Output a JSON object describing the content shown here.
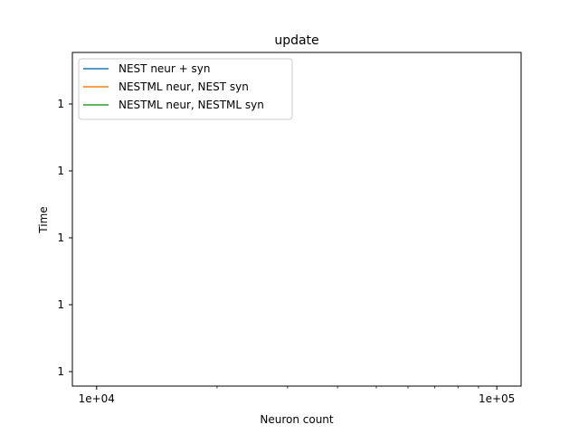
{
  "chart_data": {
    "type": "line",
    "title": "update",
    "xlabel": "Neuron count",
    "ylabel": "Time",
    "xscale": "log",
    "xlim": [
      8700,
      115000
    ],
    "x_major_ticks": [
      10000,
      100000
    ],
    "x_tick_labels": [
      "1e+04",
      "1e+05"
    ],
    "x_minor_ticks": [
      20000,
      30000,
      40000,
      50000,
      60000,
      70000,
      80000,
      90000
    ],
    "y_tick_labels": [
      "1",
      "1",
      "1",
      "1",
      "1"
    ],
    "grid": false,
    "legend_position": "top-left",
    "series": [
      {
        "name": "NEST neur + syn",
        "color": "#1f77b4",
        "values": []
      },
      {
        "name": "NESTML neur, NEST syn",
        "color": "#ff7f0e",
        "values": []
      },
      {
        "name": "NESTML neur, NESTML syn",
        "color": "#2ca02c",
        "values": []
      }
    ]
  }
}
